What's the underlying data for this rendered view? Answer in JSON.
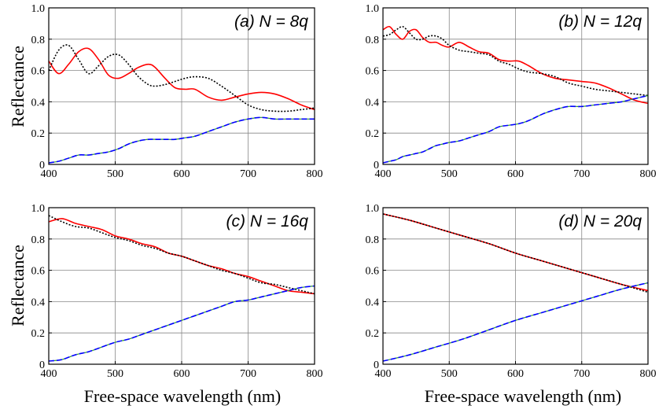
{
  "figure": {
    "ylabel": "Reflectance",
    "xlabel": "Free-space wavelength  (nm)"
  },
  "chart_data": [
    {
      "type": "line",
      "title": "(a) N = 8q",
      "xlim": [
        400,
        800
      ],
      "ylim": [
        0,
        1
      ],
      "xticks": [
        "400",
        "500",
        "600",
        "700",
        "800"
      ],
      "yticks": [
        "0",
        "0.2",
        "0.4",
        "0.6",
        "0.8",
        "1.0"
      ],
      "grid": true,
      "x": [
        400,
        415,
        430,
        445,
        460,
        475,
        490,
        505,
        520,
        535,
        550,
        560,
        575,
        590,
        605,
        620,
        640,
        660,
        680,
        700,
        720,
        740,
        760,
        780,
        800
      ],
      "series": [
        {
          "color": "#ff0000",
          "style": "solid",
          "values": [
            0.66,
            0.58,
            0.64,
            0.72,
            0.74,
            0.67,
            0.57,
            0.55,
            0.58,
            0.62,
            0.64,
            0.62,
            0.55,
            0.49,
            0.48,
            0.48,
            0.43,
            0.41,
            0.43,
            0.45,
            0.46,
            0.45,
            0.42,
            0.38,
            0.35
          ]
        },
        {
          "color": "#000000",
          "style": "dotted",
          "values": [
            0.6,
            0.73,
            0.76,
            0.67,
            0.58,
            0.63,
            0.69,
            0.7,
            0.64,
            0.56,
            0.51,
            0.5,
            0.51,
            0.53,
            0.55,
            0.56,
            0.55,
            0.5,
            0.44,
            0.38,
            0.35,
            0.34,
            0.34,
            0.35,
            0.36
          ]
        },
        {
          "color": "#0000ff",
          "style": "dashed",
          "values": [
            0.01,
            0.02,
            0.04,
            0.06,
            0.06,
            0.07,
            0.08,
            0.1,
            0.13,
            0.15,
            0.16,
            0.16,
            0.16,
            0.16,
            0.17,
            0.18,
            0.21,
            0.24,
            0.27,
            0.29,
            0.3,
            0.29,
            0.29,
            0.29,
            0.29
          ]
        }
      ]
    },
    {
      "type": "line",
      "title": "(b) N = 12q",
      "xlim": [
        400,
        800
      ],
      "ylim": [
        0,
        1
      ],
      "xticks": [
        "400",
        "500",
        "600",
        "700",
        "800"
      ],
      "yticks": [
        "0",
        "0.2",
        "0.4",
        "0.6",
        "0.8",
        "1.0"
      ],
      "grid": true,
      "x": [
        400,
        410,
        420,
        430,
        440,
        450,
        460,
        470,
        480,
        490,
        500,
        515,
        530,
        545,
        560,
        575,
        590,
        605,
        620,
        640,
        660,
        680,
        700,
        720,
        740,
        760,
        780,
        800
      ],
      "series": [
        {
          "color": "#ff0000",
          "style": "solid",
          "values": [
            0.86,
            0.88,
            0.83,
            0.8,
            0.85,
            0.86,
            0.81,
            0.78,
            0.78,
            0.76,
            0.75,
            0.78,
            0.75,
            0.72,
            0.71,
            0.67,
            0.66,
            0.66,
            0.63,
            0.58,
            0.55,
            0.54,
            0.53,
            0.52,
            0.49,
            0.45,
            0.41,
            0.39
          ]
        },
        {
          "color": "#000000",
          "style": "dotted",
          "values": [
            0.82,
            0.83,
            0.86,
            0.88,
            0.84,
            0.8,
            0.8,
            0.82,
            0.82,
            0.8,
            0.76,
            0.73,
            0.72,
            0.71,
            0.7,
            0.66,
            0.64,
            0.61,
            0.59,
            0.58,
            0.56,
            0.52,
            0.5,
            0.48,
            0.47,
            0.46,
            0.45,
            0.44
          ]
        },
        {
          "color": "#0000ff",
          "style": "dashed",
          "values": [
            0.01,
            0.02,
            0.03,
            0.05,
            0.06,
            0.07,
            0.08,
            0.1,
            0.12,
            0.13,
            0.14,
            0.15,
            0.17,
            0.19,
            0.21,
            0.24,
            0.25,
            0.26,
            0.28,
            0.32,
            0.35,
            0.37,
            0.37,
            0.38,
            0.39,
            0.4,
            0.42,
            0.44
          ]
        }
      ]
    },
    {
      "type": "line",
      "title": "(c) N = 16q",
      "xlim": [
        400,
        800
      ],
      "ylim": [
        0,
        1
      ],
      "xticks": [
        "400",
        "500",
        "600",
        "700",
        "800"
      ],
      "yticks": [
        "0",
        "0.2",
        "0.4",
        "0.6",
        "0.8",
        "1.0"
      ],
      "grid": true,
      "x": [
        400,
        420,
        440,
        460,
        480,
        500,
        520,
        540,
        560,
        580,
        600,
        620,
        640,
        660,
        680,
        700,
        720,
        740,
        760,
        780,
        800
      ],
      "series": [
        {
          "color": "#ff0000",
          "style": "solid",
          "values": [
            0.91,
            0.93,
            0.9,
            0.88,
            0.86,
            0.82,
            0.8,
            0.77,
            0.75,
            0.71,
            0.69,
            0.66,
            0.63,
            0.61,
            0.58,
            0.56,
            0.53,
            0.5,
            0.47,
            0.46,
            0.45
          ]
        },
        {
          "color": "#000000",
          "style": "dotted",
          "values": [
            0.95,
            0.91,
            0.88,
            0.87,
            0.84,
            0.81,
            0.79,
            0.76,
            0.74,
            0.71,
            0.69,
            0.66,
            0.63,
            0.6,
            0.58,
            0.55,
            0.52,
            0.51,
            0.49,
            0.47,
            0.45
          ]
        },
        {
          "color": "#0000ff",
          "style": "dashed",
          "values": [
            0.02,
            0.03,
            0.06,
            0.08,
            0.11,
            0.14,
            0.16,
            0.19,
            0.22,
            0.25,
            0.28,
            0.31,
            0.34,
            0.37,
            0.4,
            0.41,
            0.43,
            0.45,
            0.47,
            0.49,
            0.5
          ]
        }
      ]
    },
    {
      "type": "line",
      "title": "(d) N = 20q",
      "xlim": [
        400,
        800
      ],
      "ylim": [
        0,
        1
      ],
      "xticks": [
        "400",
        "500",
        "600",
        "700",
        "800"
      ],
      "yticks": [
        "0",
        "0.2",
        "0.4",
        "0.6",
        "0.8",
        "1.0"
      ],
      "grid": true,
      "x": [
        400,
        440,
        480,
        520,
        560,
        600,
        640,
        680,
        720,
        760,
        800
      ],
      "series": [
        {
          "color": "#ff0000",
          "style": "solid",
          "values": [
            0.96,
            0.92,
            0.87,
            0.82,
            0.77,
            0.71,
            0.66,
            0.61,
            0.56,
            0.51,
            0.47
          ]
        },
        {
          "color": "#000000",
          "style": "dotted",
          "values": [
            0.96,
            0.92,
            0.87,
            0.82,
            0.77,
            0.71,
            0.66,
            0.61,
            0.56,
            0.51,
            0.46
          ]
        },
        {
          "color": "#0000ff",
          "style": "dashed",
          "values": [
            0.02,
            0.06,
            0.11,
            0.16,
            0.22,
            0.28,
            0.33,
            0.38,
            0.43,
            0.48,
            0.52
          ]
        }
      ]
    }
  ]
}
